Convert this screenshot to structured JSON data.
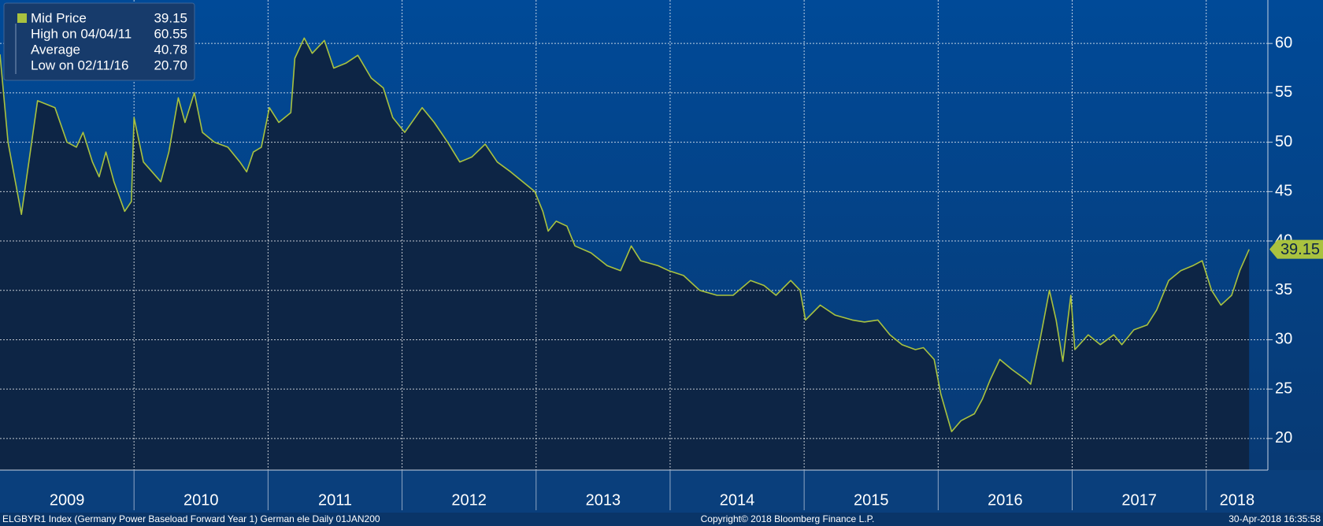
{
  "chart_data": {
    "type": "line",
    "series": [
      {
        "name": "Mid Price",
        "color": "#a9c23f",
        "x": [
          2009.0,
          2009.06,
          2009.16,
          2009.28,
          2009.41,
          2009.5,
          2009.57,
          2009.62,
          2009.69,
          2009.74,
          2009.79,
          2009.85,
          2009.93,
          2009.98,
          2010.0,
          2010.07,
          2010.2,
          2010.26,
          2010.33,
          2010.38,
          2010.45,
          2010.51,
          2010.6,
          2010.7,
          2010.79,
          2010.84,
          2010.89,
          2010.95,
          2011.01,
          2011.08,
          2011.17,
          2011.2,
          2011.27,
          2011.33,
          2011.42,
          2011.49,
          2011.58,
          2011.67,
          2011.77,
          2011.86,
          2011.93,
          2012.02,
          2012.15,
          2012.24,
          2012.34,
          2012.43,
          2012.52,
          2012.62,
          2012.71,
          2012.81,
          2012.9,
          2012.99,
          2013.05,
          2013.09,
          2013.15,
          2013.23,
          2013.29,
          2013.41,
          2013.53,
          2013.63,
          2013.71,
          2013.78,
          2013.91,
          2013.99,
          2014.1,
          2014.22,
          2014.35,
          2014.47,
          2014.6,
          2014.7,
          2014.79,
          2014.9,
          2014.97,
          2015.01,
          2015.12,
          2015.23,
          2015.36,
          2015.45,
          2015.55,
          2015.64,
          2015.73,
          2015.83,
          2015.89,
          2015.97,
          2016.02,
          2016.1,
          2016.17,
          2016.27,
          2016.33,
          2016.39,
          2016.46,
          2016.55,
          2016.65,
          2016.69,
          2016.76,
          2016.83,
          2016.88,
          2016.93,
          2016.99,
          2017.02,
          2017.12,
          2017.21,
          2017.31,
          2017.37,
          2017.46,
          2017.56,
          2017.63,
          2017.72,
          2017.81,
          2017.9,
          2017.97,
          2018.04,
          2018.11,
          2018.19,
          2018.25,
          2018.32
        ],
        "values": [
          58.9,
          50,
          42.7,
          54.2,
          53.5,
          50,
          49.5,
          51,
          48,
          46.5,
          49,
          46,
          43,
          44,
          52.5,
          48,
          46,
          49,
          54.5,
          52,
          55,
          51,
          50,
          49.5,
          48,
          47,
          49,
          49.5,
          53.5,
          52,
          53,
          58.5,
          60.55,
          59,
          60.3,
          57.5,
          58,
          58.8,
          56.5,
          55.5,
          52.5,
          51,
          53.5,
          52,
          50,
          48,
          48.5,
          49.8,
          48,
          47,
          46,
          45,
          43,
          41,
          42,
          41.5,
          39.5,
          38.8,
          37.5,
          37,
          39.5,
          38,
          37.5,
          37,
          36.5,
          35,
          34.5,
          34.5,
          36,
          35.5,
          34.5,
          36,
          35,
          32,
          33.5,
          32.5,
          32,
          31.8,
          32,
          30.5,
          29.5,
          29,
          29.2,
          28,
          24.5,
          20.7,
          21.8,
          22.5,
          24,
          26,
          28,
          27,
          26,
          25.5,
          30,
          35,
          32,
          27.8,
          34.5,
          29,
          30.5,
          29.5,
          30.5,
          29.5,
          31,
          31.5,
          33,
          36,
          37,
          37.5,
          38,
          35,
          33.5,
          34.5,
          37,
          39.15
        ]
      }
    ],
    "stats": [
      {
        "label": "High on 04/04/11",
        "value": 60.55
      },
      {
        "label": "Average",
        "value": 40.78
      },
      {
        "label": "Low on 02/11/16",
        "value": 20.7,
        "value_label": "20.70"
      }
    ],
    "xlim": [
      2009,
      2018.46
    ],
    "xticks": [
      {
        "value": 2009,
        "label": "2009"
      },
      {
        "value": 2010,
        "label": "2010"
      },
      {
        "value": 2011,
        "label": "2011"
      },
      {
        "value": 2012,
        "label": "2012"
      },
      {
        "value": 2013,
        "label": "2013"
      },
      {
        "value": 2014,
        "label": "2014"
      },
      {
        "value": 2015,
        "label": "2015"
      },
      {
        "value": 2016,
        "label": "2016"
      },
      {
        "value": 2017,
        "label": "2017"
      },
      {
        "value": 2018,
        "label": "2018"
      }
    ],
    "ylim": [
      16.8,
      64.4
    ],
    "yticks": [
      20,
      25,
      30,
      35,
      40,
      45,
      50,
      55,
      60
    ],
    "grid": true
  },
  "footer": {
    "left": "ELGBYR1 Index (Germany Power Baseload Forward Year 1) German ele  Daily 01JAN200",
    "center": "Copyright© 2018 Bloomberg Finance L.P.",
    "right": "30-Apr-2018 16:35:58"
  }
}
